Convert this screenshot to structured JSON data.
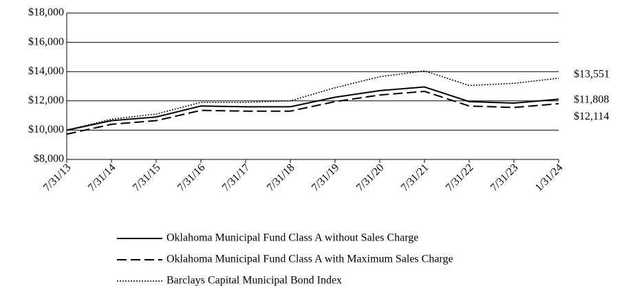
{
  "chart_data": {
    "type": "line",
    "categories": [
      "7/31/13",
      "7/31/14",
      "7/31/15",
      "7/31/16",
      "7/31/17",
      "7/31/18",
      "7/31/19",
      "7/31/20",
      "7/31/21",
      "7/31/22",
      "7/31/23",
      "1/31/24"
    ],
    "series": [
      {
        "name": "Oklahoma Municipal Fund Class A without Sales Charge",
        "color": "#000000",
        "style": "solid",
        "values": [
          10000,
          10650,
          10900,
          11650,
          11600,
          11600,
          12250,
          12700,
          12950,
          11950,
          11850,
          12114
        ],
        "end_label": "$12,114"
      },
      {
        "name": "Oklahoma Municipal Fund Class A with Maximum Sales Charge",
        "color": "#000000",
        "style": "dashed",
        "values": [
          9725,
          10400,
          10650,
          11350,
          11300,
          11300,
          11950,
          12400,
          12650,
          11650,
          11550,
          11808
        ],
        "end_label": "$11,808"
      },
      {
        "name": "Barclays Capital Municipal Bond Index",
        "color": "#000000",
        "style": "dotted",
        "values": [
          10000,
          10750,
          11100,
          11900,
          11900,
          12000,
          12900,
          13650,
          14050,
          13050,
          13200,
          13551
        ],
        "end_label": "$13,551"
      }
    ],
    "ylim": [
      8000,
      18000
    ],
    "yticks": [
      {
        "value": 8000,
        "label": "$8,000"
      },
      {
        "value": 10000,
        "label": "$10,000"
      },
      {
        "value": 12000,
        "label": "$12,000"
      },
      {
        "value": 14000,
        "label": "$14,000"
      },
      {
        "value": 16000,
        "label": "$16,000"
      },
      {
        "value": 18000,
        "label": "$18,000"
      }
    ],
    "grid": true
  }
}
